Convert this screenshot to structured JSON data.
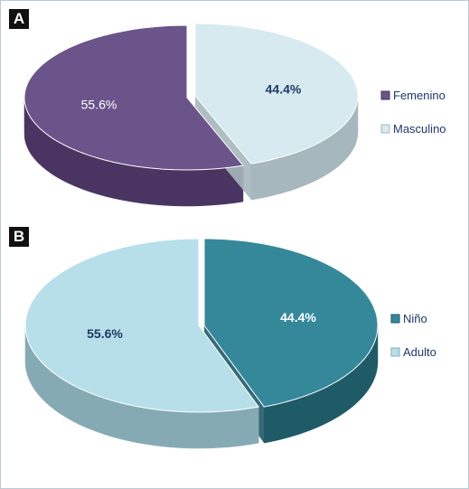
{
  "chart_data": [
    {
      "panel": "A",
      "type": "pie",
      "labels": [
        "Femenino",
        "Masculino"
      ],
      "values": [
        55.6,
        44.4
      ],
      "data_labels": [
        "55.6%",
        "44.4%"
      ],
      "colors": [
        "#6b548a",
        "#d6eaf0"
      ],
      "side_colors": [
        "#4a3562",
        "#a6b7bd"
      ],
      "label_colors": [
        "#ffffff",
        "#1f3864"
      ],
      "legend_position": "right",
      "style": "3d"
    },
    {
      "panel": "B",
      "type": "pie",
      "labels": [
        "Niño",
        "Adulto"
      ],
      "values": [
        44.4,
        55.6
      ],
      "data_labels": [
        "44.4%",
        "55.6%"
      ],
      "colors": [
        "#34889a",
        "#b7dfea"
      ],
      "side_colors": [
        "#1f5a67",
        "#86aab4"
      ],
      "label_colors": [
        "#ffffff",
        "#1f3864"
      ],
      "legend_position": "right",
      "style": "3d"
    }
  ]
}
